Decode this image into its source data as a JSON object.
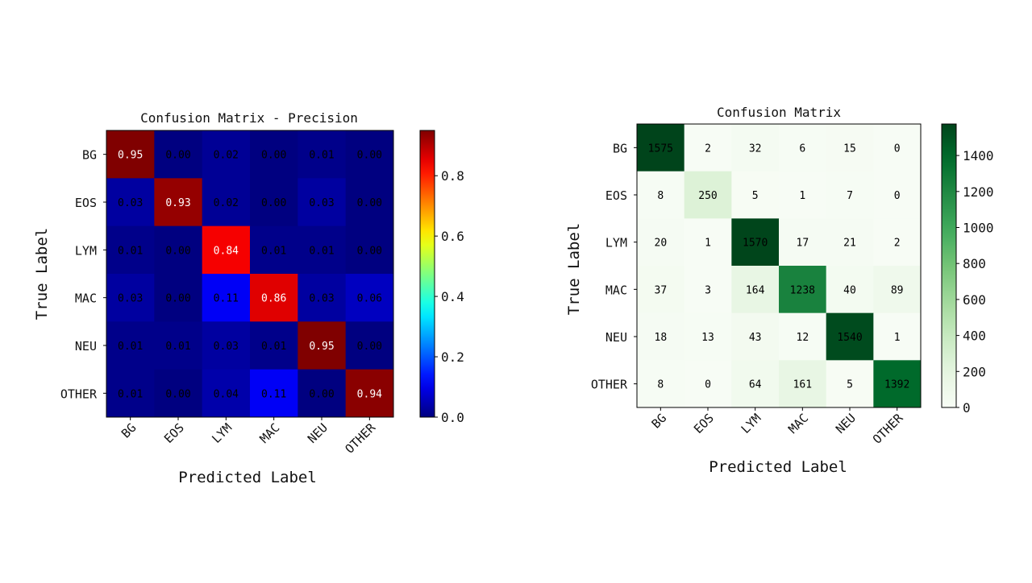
{
  "chart_data": [
    {
      "type": "heatmap",
      "title": "Confusion Matrix - Precision",
      "xlabel": "Predicted Label",
      "ylabel": "True Label",
      "x_categories": [
        "BG",
        "EOS",
        "LYM",
        "MAC",
        "NEU",
        "OTHER"
      ],
      "y_categories": [
        "BG",
        "EOS",
        "LYM",
        "MAC",
        "NEU",
        "OTHER"
      ],
      "values": [
        [
          0.95,
          0.0,
          0.02,
          0.0,
          0.01,
          0.0
        ],
        [
          0.03,
          0.93,
          0.02,
          0.0,
          0.03,
          0.0
        ],
        [
          0.01,
          0.0,
          0.84,
          0.01,
          0.01,
          0.0
        ],
        [
          0.03,
          0.0,
          0.11,
          0.86,
          0.03,
          0.06
        ],
        [
          0.01,
          0.01,
          0.03,
          0.01,
          0.95,
          0.0
        ],
        [
          0.01,
          0.0,
          0.04,
          0.11,
          0.0,
          0.94
        ]
      ],
      "colormap": "jet",
      "colorbar_range": [
        0,
        0.95
      ],
      "colorbar_ticks": [
        "0.0",
        "0.2",
        "0.4",
        "0.6",
        "0.8"
      ],
      "colorbar_tick_values": [
        0.0,
        0.2,
        0.4,
        0.6,
        0.8
      ],
      "grid": false
    },
    {
      "type": "heatmap",
      "title": "Confusion Matrix",
      "xlabel": "Predicted Label",
      "ylabel": "True Label",
      "x_categories": [
        "BG",
        "EOS",
        "LYM",
        "MAC",
        "NEU",
        "OTHER"
      ],
      "y_categories": [
        "BG",
        "EOS",
        "LYM",
        "MAC",
        "NEU",
        "OTHER"
      ],
      "values": [
        [
          1575,
          2,
          32,
          6,
          15,
          0
        ],
        [
          8,
          250,
          5,
          1,
          7,
          0
        ],
        [
          20,
          1,
          1570,
          17,
          21,
          2
        ],
        [
          37,
          3,
          164,
          1238,
          40,
          89
        ],
        [
          18,
          13,
          43,
          12,
          1540,
          1
        ],
        [
          8,
          0,
          64,
          161,
          5,
          1392
        ]
      ],
      "colormap": "greens",
      "colorbar_range": [
        0,
        1575
      ],
      "colorbar_ticks": [
        "0",
        "200",
        "400",
        "600",
        "800",
        "1000",
        "1200",
        "1400"
      ],
      "colorbar_tick_values": [
        0,
        200,
        400,
        600,
        800,
        1000,
        1200,
        1400
      ],
      "grid": false
    }
  ]
}
